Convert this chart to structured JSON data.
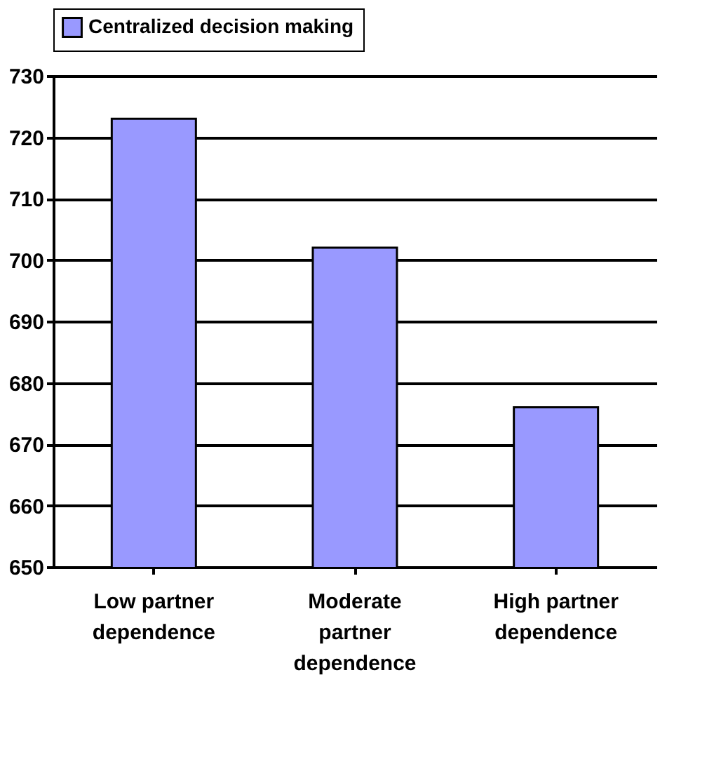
{
  "chart_data": {
    "type": "bar",
    "categories": [
      "Low partner dependence",
      "Moderate partner dependence",
      "High partner dependence"
    ],
    "series": [
      {
        "name": "Centralized decision making",
        "color": "#9999ff",
        "values": [
          723,
          702,
          676
        ]
      }
    ],
    "ylim": [
      650,
      730
    ],
    "yticks": [
      650,
      660,
      670,
      680,
      690,
      700,
      710,
      720,
      730
    ],
    "grid": "y",
    "legend": "top"
  }
}
